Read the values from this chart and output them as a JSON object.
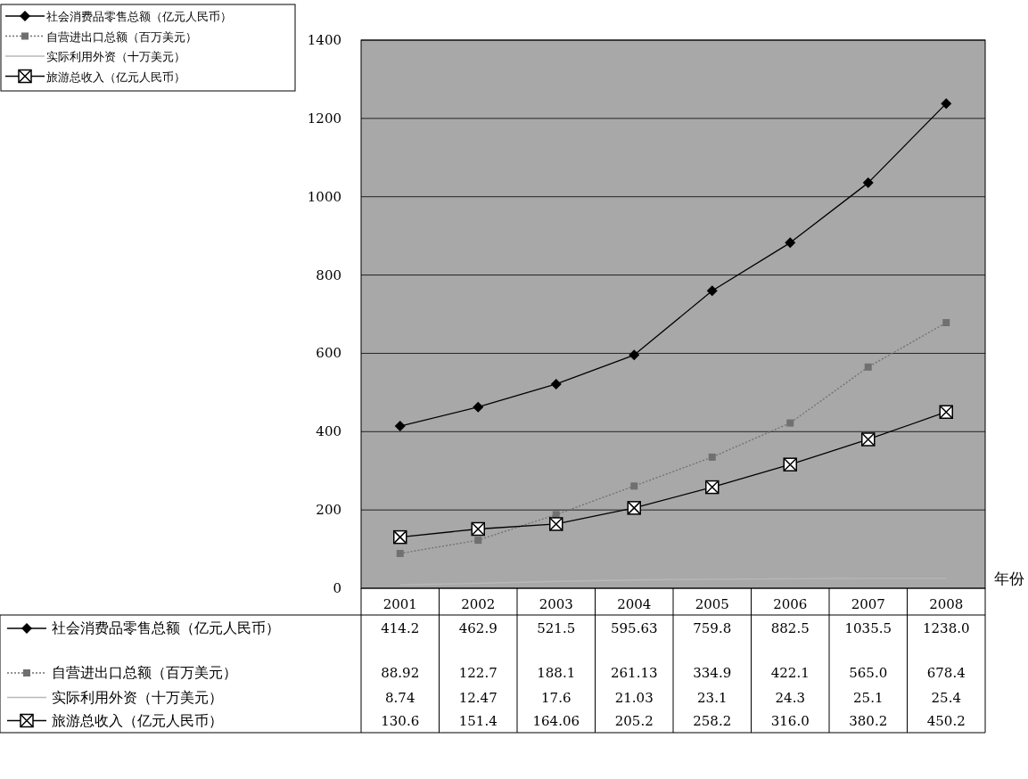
{
  "chart_data": {
    "type": "line",
    "xlabel": "年份",
    "categories": [
      "2001",
      "2002",
      "2003",
      "2004",
      "2005",
      "2006",
      "2007",
      "2008"
    ],
    "ylim": [
      0,
      1400
    ],
    "yticks": [
      0,
      200,
      400,
      600,
      800,
      1000,
      1200,
      1400
    ],
    "grid": "y",
    "legend": "left",
    "series": [
      {
        "name": "社会消费品零售总额（亿元人民币）",
        "color": "#000000",
        "marker": "diamond",
        "line_style": "solid",
        "values": [
          414.2,
          462.9,
          521.5,
          595.63,
          759.8,
          882.5,
          1035.5,
          1238.0
        ],
        "value_labels": [
          "414.2",
          "462.9",
          "521.5",
          "595.63",
          "759.8",
          "882.5",
          "1035.5",
          "1238.0"
        ]
      },
      {
        "name": "自营进出口总额（百万美元）",
        "color": "#707070",
        "marker": "square",
        "line_style": "dotted",
        "values": [
          88.92,
          122.7,
          188.1,
          261.13,
          334.9,
          422.1,
          565.0,
          678.4
        ],
        "value_labels": [
          "88.92",
          "122.7",
          "188.1",
          "261.13",
          "334.9",
          "422.1",
          "565.0",
          "678.4"
        ]
      },
      {
        "name": "实际利用外资（十万美元）",
        "color": "#b8b8b8",
        "marker": "none",
        "line_style": "solid",
        "values": [
          8.74,
          12.47,
          17.6,
          21.03,
          23.1,
          24.3,
          25.1,
          25.4
        ],
        "value_labels": [
          "8.74",
          "12.47",
          "17.6",
          "21.03",
          "23.1",
          "24.3",
          "25.1",
          "25.4"
        ]
      },
      {
        "name": "旅游总收入（亿元人民币）",
        "color": "#000000",
        "marker": "square",
        "line_style": "solid",
        "values": [
          130.6,
          151.4,
          164.06,
          205.2,
          258.2,
          316.0,
          380.2,
          450.2
        ],
        "value_labels": [
          "130.6",
          "151.4",
          "164.06",
          "205.2",
          "258.2",
          "316.0",
          "380.2",
          "450.2"
        ]
      }
    ]
  }
}
